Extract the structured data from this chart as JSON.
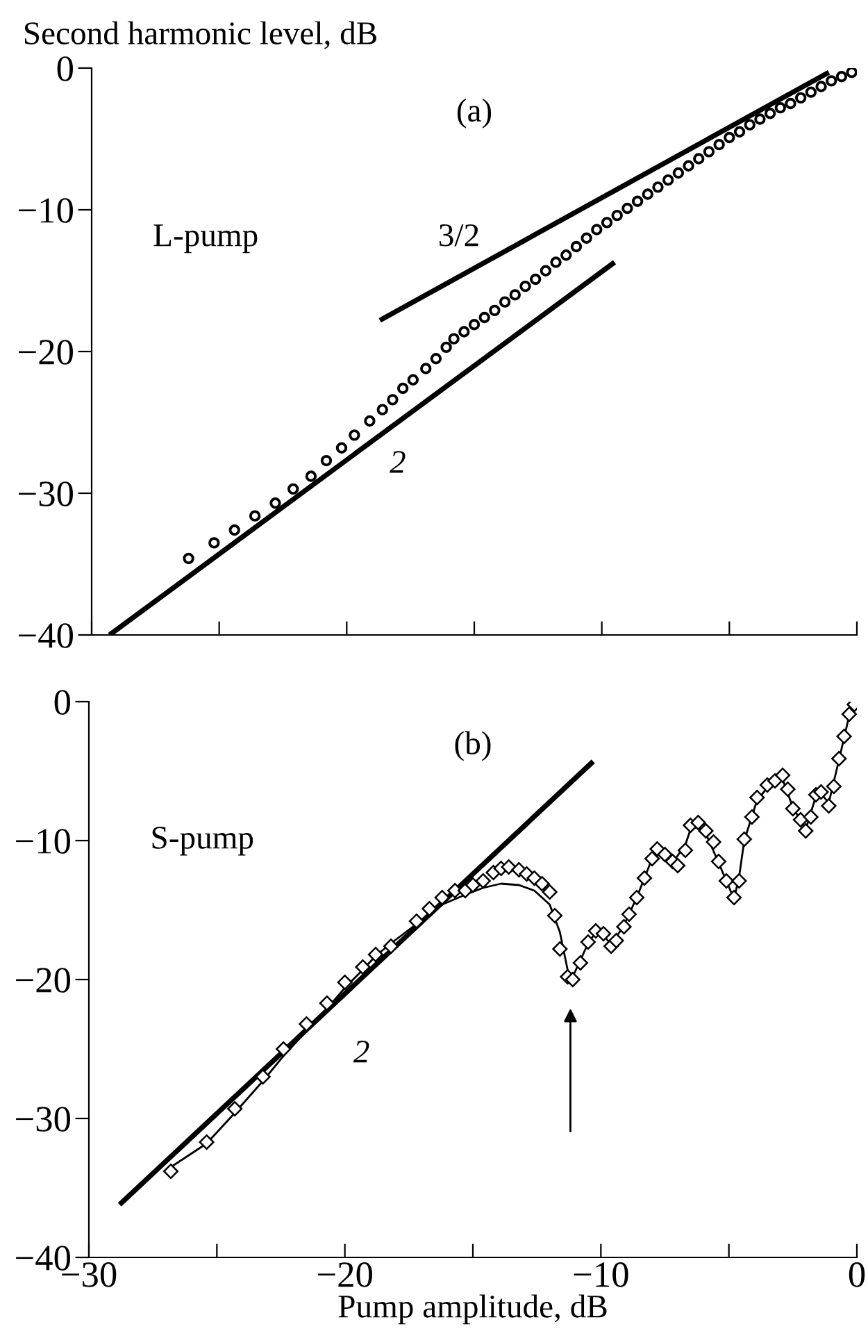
{
  "chart_data": [
    {
      "type": "scatter",
      "ylabel": "Second harmonic level, dB",
      "annotations": [
        "(a)",
        "L-pump",
        "3/2",
        "2"
      ],
      "xlim": [
        -30,
        0
      ],
      "ylim": [
        -40,
        0
      ],
      "xticks": [
        -30,
        -25,
        -20,
        -15,
        -10,
        -5,
        0
      ],
      "yticks": [
        -40,
        -30,
        -20,
        -10,
        0
      ],
      "tick_labels": "y",
      "grid": false,
      "legend": false,
      "series": [
        {
          "marker": "circle",
          "color": "#000000",
          "x": [
            -26.2,
            -25.2,
            -24.4,
            -23.6,
            -22.8,
            -22.1,
            -21.4,
            -20.8,
            -20.2,
            -19.7,
            -19.1,
            -18.6,
            -18.2,
            -17.8,
            -17.4,
            -16.9,
            -16.5,
            -16.1,
            -15.8,
            -15.4,
            -15.0,
            -14.6,
            -14.2,
            -13.8,
            -13.4,
            -13.0,
            -12.6,
            -12.2,
            -11.8,
            -11.4,
            -11.0,
            -10.6,
            -10.2,
            -9.8,
            -9.4,
            -9.0,
            -8.6,
            -8.2,
            -7.8,
            -7.4,
            -7.0,
            -6.6,
            -6.2,
            -5.8,
            -5.4,
            -5.0,
            -4.6,
            -4.2,
            -3.8,
            -3.4,
            -3.0,
            -2.6,
            -2.2,
            -1.8,
            -1.4,
            -1.0,
            -0.6,
            -0.2
          ],
          "values": [
            -34.6,
            -33.5,
            -32.6,
            -31.6,
            -30.7,
            -29.7,
            -28.8,
            -27.7,
            -26.8,
            -25.9,
            -24.9,
            -24.1,
            -23.4,
            -22.6,
            -22.0,
            -21.2,
            -20.5,
            -19.7,
            -19.1,
            -18.6,
            -18.1,
            -17.6,
            -17.1,
            -16.5,
            -16.0,
            -15.4,
            -14.9,
            -14.3,
            -13.7,
            -13.2,
            -12.6,
            -12.0,
            -11.4,
            -10.9,
            -10.4,
            -9.9,
            -9.4,
            -8.9,
            -8.4,
            -7.9,
            -7.4,
            -6.9,
            -6.4,
            -5.9,
            -5.4,
            -4.9,
            -4.5,
            -4.0,
            -3.6,
            -3.2,
            -2.8,
            -2.5,
            -2.1,
            -1.7,
            -1.3,
            -0.9,
            -0.6,
            -0.3
          ]
        },
        {
          "type": "line",
          "color": "#000000",
          "x": [
            -18.7,
            -1.1
          ],
          "values": [
            -17.8,
            -0.3
          ]
        },
        {
          "type": "line",
          "color": "#000000",
          "x": [
            -29.3,
            -9.5
          ],
          "values": [
            -40,
            -13.7
          ]
        }
      ]
    },
    {
      "type": "scatter",
      "xlabel": "Pump amplitude, dB",
      "annotations": [
        "(b)",
        "S-pump",
        "2"
      ],
      "xlim": [
        -30,
        0
      ],
      "ylim": [
        -40,
        0
      ],
      "xticks": [
        -30,
        {
          "value": -25,
          "label": null
        },
        -20,
        {
          "value": -15,
          "label": null
        },
        -10,
        {
          "value": -5,
          "label": null
        },
        0
      ],
      "yticks": [
        -40,
        -30,
        -20,
        -10,
        0
      ],
      "grid": false,
      "legend": false,
      "series": [
        {
          "marker": "diamond",
          "color": "#000000",
          "x": [
            -26.8,
            -25.4,
            -24.3,
            -23.2,
            -22.4,
            -21.5,
            -20.7,
            -20.0,
            -19.3,
            -18.8,
            -18.2,
            -17.2,
            -16.7,
            -16.2,
            -15.7,
            -15.3,
            -15.0,
            -14.6,
            -14.2,
            -13.9,
            -13.6,
            -13.2,
            -12.9,
            -12.6,
            -12.3,
            -12.0,
            -11.8,
            -11.6,
            -11.3,
            -11.1,
            -10.8,
            -10.5,
            -10.2,
            -9.9,
            -9.6,
            -9.4,
            -9.1,
            -8.9,
            -8.6,
            -8.3,
            -8.0,
            -7.8,
            -7.5,
            -7.2,
            -7.0,
            -6.7,
            -6.5,
            -6.2,
            -5.9,
            -5.6,
            -5.4,
            -5.1,
            -4.8,
            -4.6,
            -4.4,
            -4.1,
            -3.9,
            -3.5,
            -3.2,
            -2.9,
            -2.7,
            -2.5,
            -2.2,
            -2.0,
            -1.8,
            -1.6,
            -1.4,
            -1.1,
            -0.9,
            -0.7,
            -0.5,
            -0.3,
            -0.1
          ],
          "values": [
            -33.8,
            -31.7,
            -29.3,
            -27.0,
            -25.0,
            -23.2,
            -21.7,
            -20.2,
            -19.1,
            -18.2,
            -17.6,
            -15.8,
            -14.9,
            -14.1,
            -13.6,
            -13.6,
            -13.2,
            -12.9,
            -12.3,
            -12.0,
            -11.9,
            -12.1,
            -12.4,
            -12.7,
            -13.1,
            -13.7,
            -15.4,
            -17.8,
            -19.8,
            -20.0,
            -18.8,
            -17.3,
            -16.5,
            -16.7,
            -17.6,
            -17.2,
            -16.2,
            -15.3,
            -14.1,
            -12.7,
            -11.3,
            -10.6,
            -11.0,
            -11.5,
            -11.8,
            -10.7,
            -8.9,
            -8.7,
            -9.3,
            -10.1,
            -11.5,
            -12.9,
            -14.1,
            -12.9,
            -9.9,
            -8.3,
            -6.9,
            -6.0,
            -5.7,
            -5.3,
            -6.3,
            -7.7,
            -8.5,
            -9.3,
            -8.3,
            -6.7,
            -6.5,
            -7.5,
            -6.1,
            -4.1,
            -2.5,
            -0.9,
            -0.2
          ]
        },
        {
          "type": "line",
          "color": "#000000",
          "x": [
            -26.8,
            -25.4,
            -24.3,
            -23.2,
            -22.4,
            -21.5,
            -20.7,
            -20.0,
            -19.3,
            -18.8,
            -18.2,
            -17.2,
            -16.2,
            -15.3,
            -14.6,
            -13.9,
            -13.2,
            -12.6,
            -12.0,
            -11.6,
            -11.2,
            -10.8,
            -10.5,
            -10.2,
            -9.9,
            -9.6,
            -9.1,
            -8.6,
            -8.0,
            -7.8,
            -7.5,
            -7.2,
            -6.7,
            -6.5,
            -6.2,
            -5.9,
            -5.4,
            -4.8,
            -4.6,
            -4.4,
            -3.9,
            -3.5,
            -2.9,
            -2.5,
            -2.0,
            -1.6,
            -1.4,
            -1.1,
            -0.7,
            -0.3,
            -0.1
          ],
          "values": [
            -33.5,
            -31.8,
            -29.6,
            -27.3,
            -25.5,
            -23.7,
            -22.1,
            -20.6,
            -19.3,
            -18.3,
            -17.4,
            -16.0,
            -14.6,
            -13.9,
            -13.4,
            -13.1,
            -13.2,
            -13.6,
            -14.6,
            -16.6,
            -20.2,
            -18.6,
            -17.4,
            -16.6,
            -16.8,
            -17.5,
            -16.1,
            -14.1,
            -11.3,
            -10.8,
            -11.1,
            -11.6,
            -10.3,
            -9.2,
            -9.0,
            -9.5,
            -11.6,
            -14.2,
            -12.6,
            -10.0,
            -7.1,
            -6.2,
            -5.6,
            -7.6,
            -9.2,
            -6.8,
            -6.6,
            -7.3,
            -4.2,
            -1.0,
            -0.2
          ]
        },
        {
          "type": "line",
          "color": "#000000",
          "x": [
            -28.8,
            -10.3
          ],
          "values": [
            -36.2,
            -4.3
          ]
        }
      ]
    }
  ]
}
